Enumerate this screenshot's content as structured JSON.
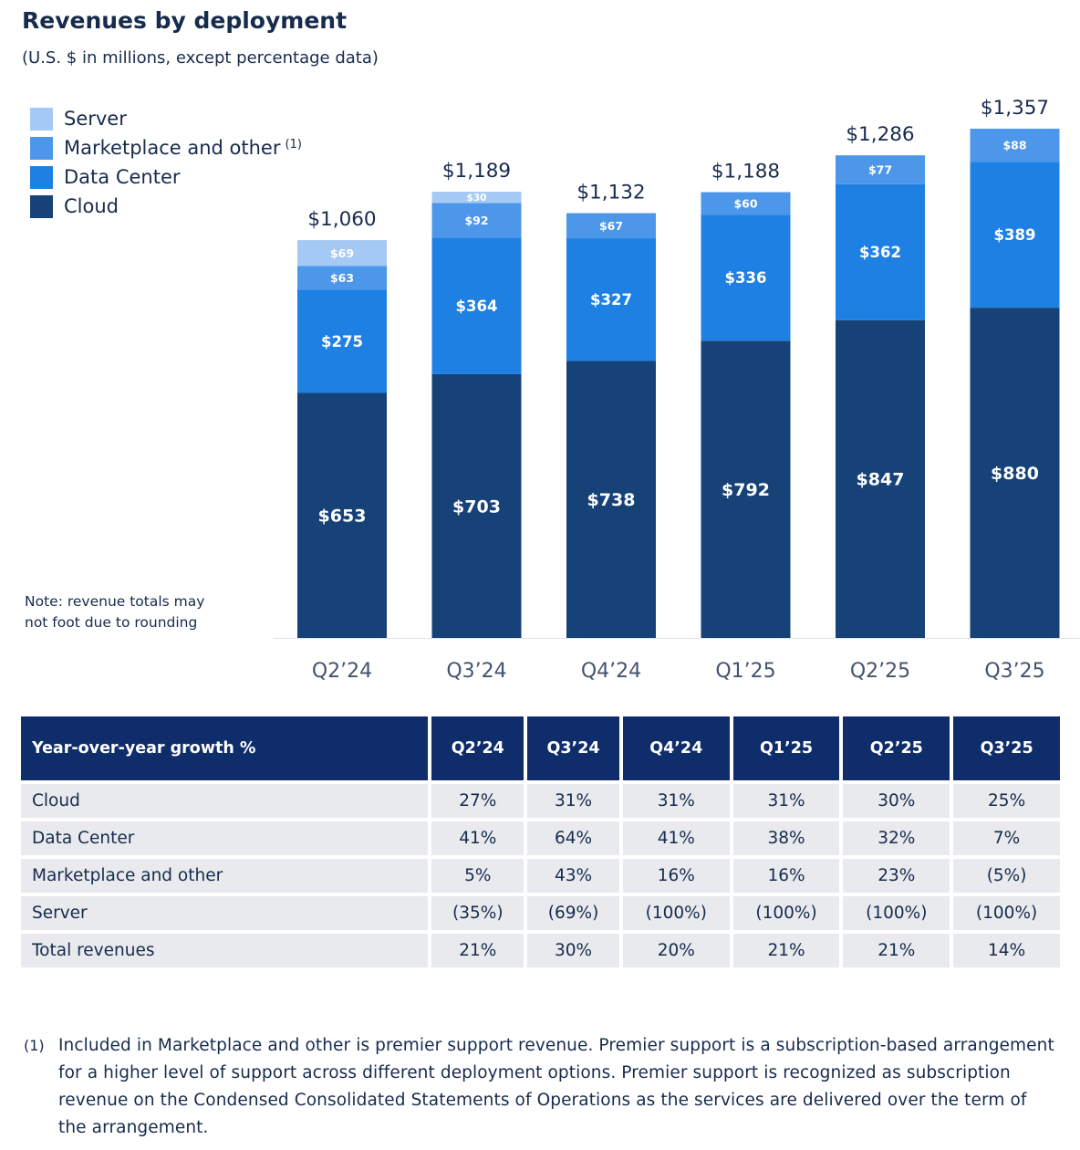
{
  "colors": {
    "server": "#a4c9f5",
    "marketplace": "#4c97ea",
    "data_center": "#1f80e3",
    "cloud": "#164278",
    "header_bg": "#0f2c6b",
    "row_bg": "#e9eaed",
    "text": "#172b4d"
  },
  "title": "Revenues by deployment",
  "subtitle": "(U.S. $ in millions, except percentage data)",
  "legend": [
    {
      "label": "Server",
      "sup": "",
      "color_key": "server",
      "icon": "legend-swatch"
    },
    {
      "label": "Marketplace and other",
      "sup": "(1)",
      "color_key": "marketplace",
      "icon": "legend-swatch"
    },
    {
      "label": "Data Center",
      "sup": "",
      "color_key": "data_center",
      "icon": "legend-swatch"
    },
    {
      "label": "Cloud",
      "sup": "",
      "color_key": "cloud",
      "icon": "legend-swatch"
    }
  ],
  "note": [
    "Note: revenue totals may",
    "not foot due to rounding"
  ],
  "chart_data": {
    "type": "bar",
    "stacked": true,
    "categories": [
      "Q2’24",
      "Q3’24",
      "Q4’24",
      "Q1’25",
      "Q2’25",
      "Q3’25"
    ],
    "series": [
      {
        "name": "Cloud",
        "color_key": "cloud",
        "values": [
          653,
          703,
          738,
          792,
          847,
          880
        ],
        "labels": [
          "$653",
          "$703",
          "$738",
          "$792",
          "$847",
          "$880"
        ]
      },
      {
        "name": "Data Center",
        "color_key": "data_center",
        "values": [
          275,
          364,
          327,
          336,
          362,
          389
        ],
        "labels": [
          "$275",
          "$364",
          "$327",
          "$336",
          "$362",
          "$389"
        ]
      },
      {
        "name": "Marketplace and other",
        "color_key": "marketplace",
        "values": [
          63,
          92,
          67,
          60,
          77,
          88
        ],
        "labels": [
          "$63",
          "$92",
          "$67",
          "$60",
          "$77",
          "$88"
        ]
      },
      {
        "name": "Server",
        "color_key": "server",
        "values": [
          69,
          30,
          0,
          0,
          0,
          0
        ],
        "labels": [
          "$69",
          "$30",
          "",
          "",
          "",
          ""
        ]
      }
    ],
    "totals": [
      "$1,060",
      "$1,189",
      "$1,132",
      "$1,188",
      "$1,286",
      "$1,357"
    ],
    "ylim": [
      0,
      1357
    ],
    "grid": false,
    "legend_position": "top-left"
  },
  "table": {
    "header": [
      "Year-over-year growth %",
      "Q2’24",
      "Q3’24",
      "Q4’24",
      "Q1’25",
      "Q2’25",
      "Q3’25"
    ],
    "rows": [
      [
        "Cloud",
        "27%",
        "31%",
        "31%",
        "31%",
        "30%",
        "25%"
      ],
      [
        "Data Center",
        "41%",
        "64%",
        "41%",
        "38%",
        "32%",
        "7%"
      ],
      [
        "Marketplace and other",
        "5%",
        "43%",
        "16%",
        "16%",
        "23%",
        "(5%)"
      ],
      [
        "Server",
        "(35%)",
        "(69%)",
        "(100%)",
        "(100%)",
        "(100%)",
        "(100%)"
      ],
      [
        "Total revenues",
        "21%",
        "30%",
        "20%",
        "21%",
        "21%",
        "14%"
      ]
    ]
  },
  "footnote": {
    "marker": "(1)",
    "text": "Included in Marketplace and other is premier support revenue. Premier support is a subscription-based arrangement for a higher level of support across different deployment options. Premier support is recognized as subscription revenue on the Condensed Consolidated Statements of Operations as the services are delivered over the term of the arrangement."
  }
}
